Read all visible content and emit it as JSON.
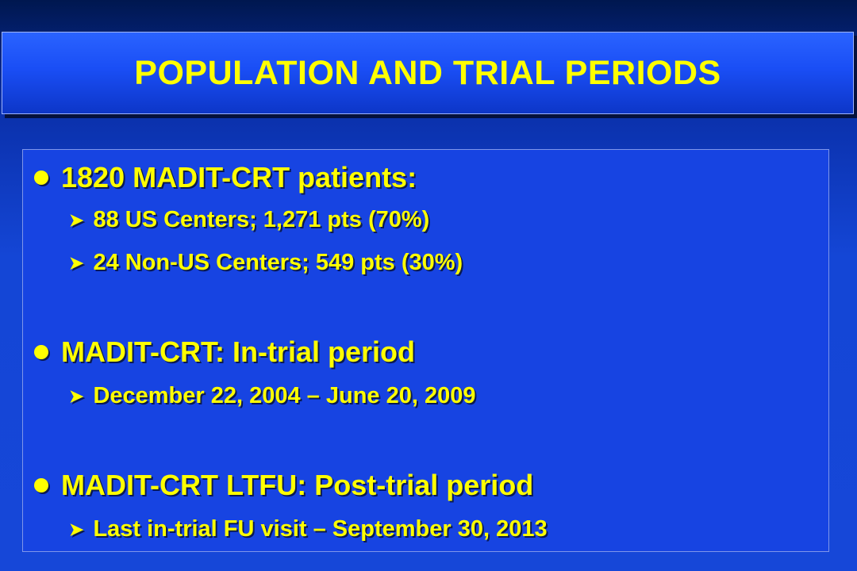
{
  "slide": {
    "title": "POPULATION AND TRIAL PERIODS",
    "colors": {
      "text": "#ffff00",
      "background": "#1647d8",
      "title_bar": "#1a4ef5"
    },
    "bullets": [
      {
        "level": 1,
        "icon": "round-bullet-icon",
        "text": "1820 MADIT-CRT patients:"
      },
      {
        "level": 2,
        "icon": "arrow-bullet-icon",
        "text": "88 US Centers; 1,271 pts (70%)"
      },
      {
        "level": 2,
        "icon": "arrow-bullet-icon",
        "text": "24 Non-US Centers; 549 pts (30%)"
      },
      {
        "level": 1,
        "icon": "round-bullet-icon",
        "text": "MADIT-CRT: In-trial period"
      },
      {
        "level": 2,
        "icon": "arrow-bullet-icon",
        "text": "December 22, 2004 – June 20, 2009"
      },
      {
        "level": 1,
        "icon": "round-bullet-icon",
        "text": "MADIT-CRT LTFU: Post-trial period"
      },
      {
        "level": 2,
        "icon": "arrow-bullet-icon",
        "text": "Last in-trial FU visit – September 30, 2013"
      }
    ]
  }
}
